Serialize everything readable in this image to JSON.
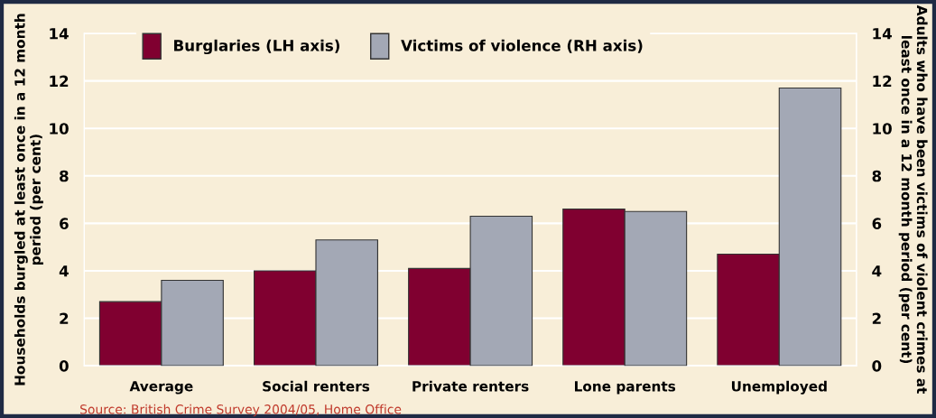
{
  "chart_data": {
    "type": "bar",
    "categories": [
      "Average",
      "Social renters",
      "Private renters",
      "Lone parents",
      "Unemployed"
    ],
    "series": [
      {
        "name": "Burglaries (LH axis)",
        "color": "#800030",
        "values": [
          2.7,
          4.0,
          4.1,
          6.6,
          4.7
        ]
      },
      {
        "name": "Victims of violence (RH axis)",
        "color": "#a3a8b5",
        "values": [
          3.6,
          5.3,
          6.3,
          6.5,
          11.7
        ],
        "axis": "y2"
      }
    ],
    "ylabel": "Households burgled at least once in a 12 month period (per cent)",
    "y2label": "Adults who have been victims of violent crimes at least once in a 12 month period (per cent)",
    "ylim": [
      0,
      14
    ],
    "yticks": [
      0,
      2,
      4,
      6,
      8,
      10,
      12,
      14
    ],
    "y2lim": [
      0,
      14
    ],
    "y2ticks": [
      0,
      2,
      4,
      6,
      8,
      10,
      12,
      14
    ],
    "grid": "y",
    "legend": "top",
    "annotations": [
      "Source: British Crime Survey 2004/05, Home Office"
    ]
  }
}
